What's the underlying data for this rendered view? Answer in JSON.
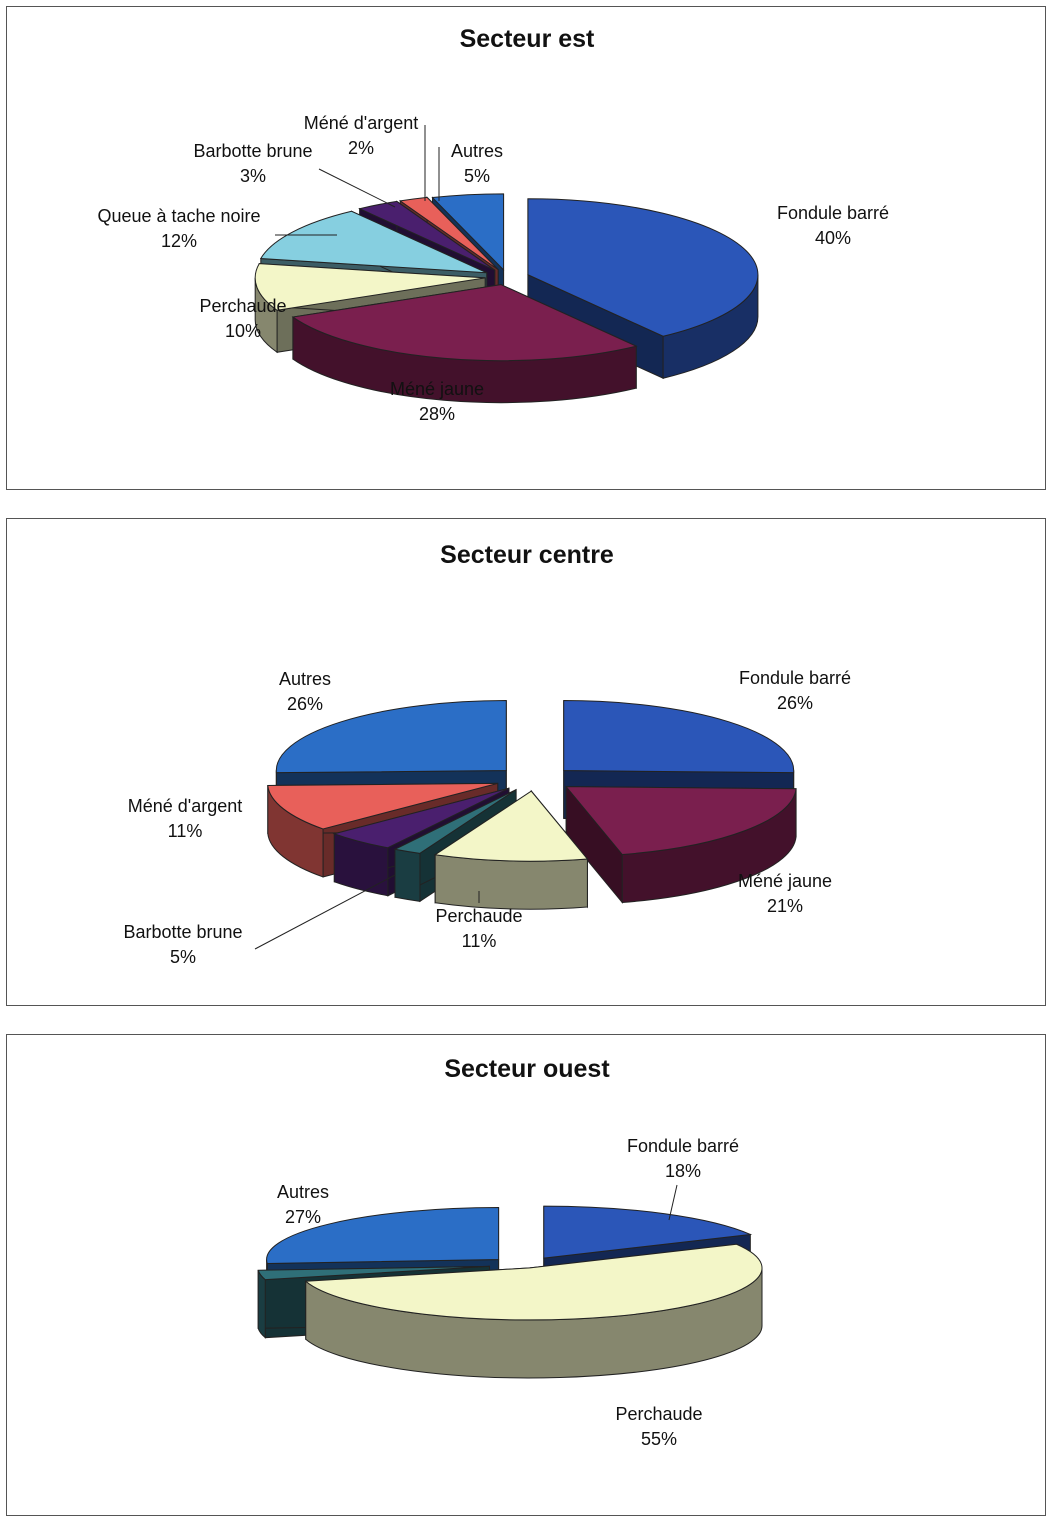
{
  "chart_data": [
    {
      "type": "pie",
      "title": "Secteur est",
      "series": [
        {
          "label": "Fondule barré",
          "value": 40,
          "value_label": "40%",
          "color": "#2b56b8"
        },
        {
          "label": "Méné jaune",
          "value": 28,
          "value_label": "28%",
          "color": "#7a1f4e"
        },
        {
          "label": "Perchaude",
          "value": 10,
          "value_label": "10%",
          "color": "#f3f6c8"
        },
        {
          "label": "Queue à tache noire",
          "value": 12,
          "value_label": "12%",
          "color": "#86cfe0"
        },
        {
          "label": "Barbotte brune",
          "value": 3,
          "value_label": "3%",
          "color": "#4a1f6e"
        },
        {
          "label": "Méné d'argent",
          "value": 2,
          "value_label": "2%",
          "color": "#e8605a"
        },
        {
          "label": "Autres",
          "value": 5,
          "value_label": "5%",
          "color": "#2b6ec6"
        }
      ]
    },
    {
      "type": "pie",
      "title": "Secteur centre",
      "series": [
        {
          "label": "Fondule barré",
          "value": 26,
          "value_label": "26%",
          "color": "#2b56b8"
        },
        {
          "label": "Méné jaune",
          "value": 21,
          "value_label": "21%",
          "color": "#7a1f4e"
        },
        {
          "label": "Perchaude",
          "value": 11,
          "value_label": "11%",
          "color": "#f3f6c8"
        },
        {
          "label": "",
          "value": 2,
          "value_label": "",
          "color": "#2f6f78"
        },
        {
          "label": "Barbotte brune",
          "value": 5,
          "value_label": "5%",
          "color": "#4a1f6e"
        },
        {
          "label": "Méné d'argent",
          "value": 11,
          "value_label": "11%",
          "color": "#e8605a"
        },
        {
          "label": "Autres",
          "value": 26,
          "value_label": "26%",
          "color": "#2b6ec6"
        }
      ]
    },
    {
      "type": "pie",
      "title": "Secteur ouest",
      "series": [
        {
          "label": "Fondule barré",
          "value": 18,
          "value_label": "18%",
          "color": "#2b56b8"
        },
        {
          "label": "Perchaude",
          "value": 55,
          "value_label": "55%",
          "color": "#f3f6c8"
        },
        {
          "label": "",
          "value": 3,
          "value_label": "",
          "color": "#2f6f78"
        },
        {
          "label": "Autres",
          "value": 27,
          "value_label": "27%",
          "color": "#2b6ec6"
        }
      ]
    }
  ]
}
